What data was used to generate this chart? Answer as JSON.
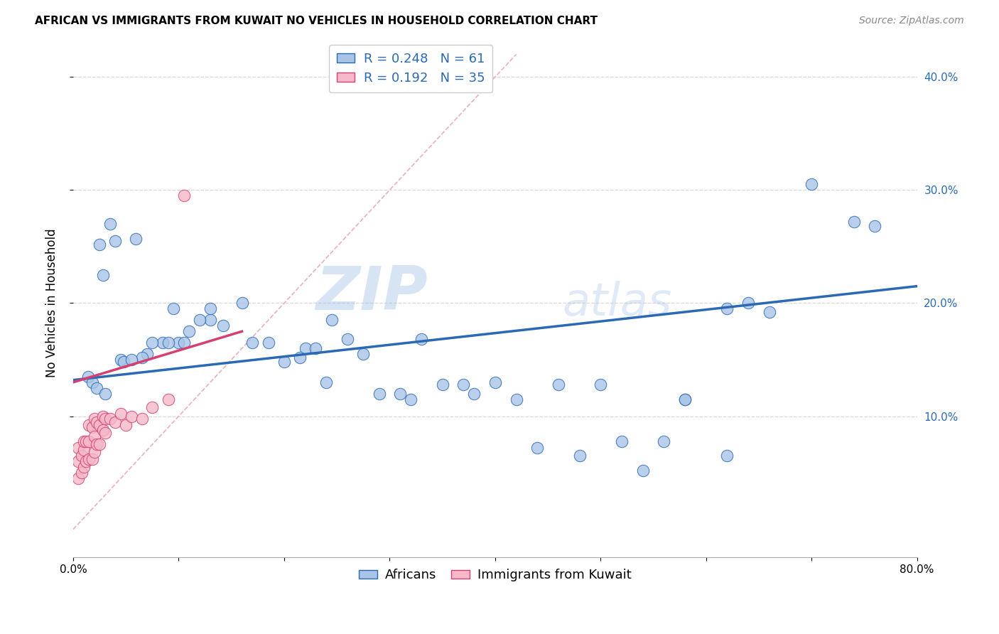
{
  "title": "AFRICAN VS IMMIGRANTS FROM KUWAIT NO VEHICLES IN HOUSEHOLD CORRELATION CHART",
  "source": "Source: ZipAtlas.com",
  "ylabel": "No Vehicles in Household",
  "watermark": "ZIPatlas",
  "legend_r1": "R = 0.248   N = 61",
  "legend_r2": "R = 0.192   N = 35",
  "xlim": [
    0.0,
    0.8
  ],
  "ylim": [
    -0.025,
    0.425
  ],
  "color_african": "#a8c4e6",
  "color_kuwait": "#f5b8c8",
  "color_line_african": "#2a6ab5",
  "color_line_kuwait": "#d44070",
  "color_diag": "#e8b0bc",
  "grid_color": "#d8d8d8",
  "africans_x": [
    0.014,
    0.059,
    0.035,
    0.025,
    0.04,
    0.028,
    0.018,
    0.022,
    0.03,
    0.045,
    0.07,
    0.085,
    0.1,
    0.13,
    0.095,
    0.12,
    0.16,
    0.075,
    0.11,
    0.09,
    0.13,
    0.105,
    0.065,
    0.048,
    0.055,
    0.142,
    0.17,
    0.185,
    0.2,
    0.22,
    0.23,
    0.215,
    0.245,
    0.26,
    0.24,
    0.275,
    0.29,
    0.31,
    0.32,
    0.33,
    0.35,
    0.37,
    0.38,
    0.4,
    0.42,
    0.44,
    0.46,
    0.48,
    0.5,
    0.52,
    0.54,
    0.56,
    0.58,
    0.62,
    0.64,
    0.66,
    0.7,
    0.74,
    0.76,
    0.62,
    0.58
  ],
  "africans_y": [
    0.135,
    0.257,
    0.27,
    0.252,
    0.255,
    0.225,
    0.13,
    0.125,
    0.12,
    0.15,
    0.155,
    0.165,
    0.165,
    0.185,
    0.195,
    0.185,
    0.2,
    0.165,
    0.175,
    0.165,
    0.195,
    0.165,
    0.152,
    0.148,
    0.15,
    0.18,
    0.165,
    0.165,
    0.148,
    0.16,
    0.16,
    0.152,
    0.185,
    0.168,
    0.13,
    0.155,
    0.12,
    0.12,
    0.115,
    0.168,
    0.128,
    0.128,
    0.12,
    0.13,
    0.115,
    0.072,
    0.128,
    0.065,
    0.128,
    0.078,
    0.052,
    0.078,
    0.115,
    0.065,
    0.2,
    0.192,
    0.305,
    0.272,
    0.268,
    0.195,
    0.115
  ],
  "kuwait_x": [
    0.005,
    0.005,
    0.005,
    0.008,
    0.008,
    0.01,
    0.01,
    0.01,
    0.012,
    0.012,
    0.015,
    0.015,
    0.015,
    0.018,
    0.018,
    0.02,
    0.02,
    0.02,
    0.022,
    0.022,
    0.025,
    0.025,
    0.028,
    0.028,
    0.03,
    0.03,
    0.035,
    0.04,
    0.045,
    0.05,
    0.055,
    0.065,
    0.075,
    0.09,
    0.105
  ],
  "kuwait_y": [
    0.045,
    0.06,
    0.072,
    0.05,
    0.065,
    0.055,
    0.07,
    0.078,
    0.06,
    0.078,
    0.062,
    0.078,
    0.092,
    0.062,
    0.09,
    0.068,
    0.082,
    0.098,
    0.075,
    0.095,
    0.075,
    0.092,
    0.088,
    0.1,
    0.085,
    0.098,
    0.098,
    0.095,
    0.102,
    0.092,
    0.1,
    0.098,
    0.108,
    0.115,
    0.295
  ],
  "title_fontsize": 11,
  "axis_label_fontsize": 12,
  "tick_fontsize": 11,
  "legend_fontsize": 13,
  "source_fontsize": 10,
  "background_color": "#ffffff",
  "line_af_x0": 0.0,
  "line_af_y0": 0.132,
  "line_af_x1": 0.8,
  "line_af_y1": 0.215,
  "line_kw_x0": 0.0,
  "line_kw_y0": 0.13,
  "line_kw_x1": 0.16,
  "line_kw_y1": 0.175
}
